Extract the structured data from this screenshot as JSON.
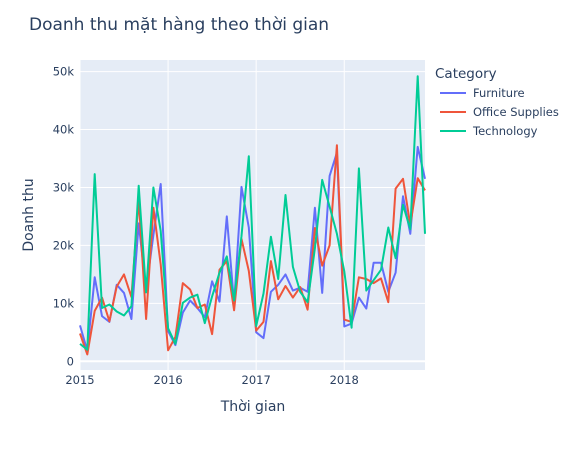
{
  "chart_data": {
    "type": "line",
    "title": "Doanh thu mặt hàng theo thời gian",
    "xlabel": "Thời gian",
    "ylabel": "Doanh thu",
    "x_start": "2015-01",
    "x_end": "2018-12",
    "x_ticks": [
      "2015",
      "2016",
      "2017",
      "2018"
    ],
    "y_ticks": [
      "0",
      "10k",
      "20k",
      "30k",
      "40k",
      "50k"
    ],
    "y_tick_values": [
      0,
      10000,
      20000,
      30000,
      40000,
      50000
    ],
    "ylim": [
      -1500,
      52000
    ],
    "grid": true,
    "legend_title": "Category",
    "legend_position": "right",
    "series": [
      {
        "name": "Furniture",
        "color": "#636efa",
        "x": [
          "2015-01",
          "2015-02",
          "2015-03",
          "2015-04",
          "2015-05",
          "2015-06",
          "2015-07",
          "2015-08",
          "2015-09",
          "2015-10",
          "2015-11",
          "2015-12",
          "2016-01",
          "2016-02",
          "2016-03",
          "2016-04",
          "2016-05",
          "2016-06",
          "2016-07",
          "2016-08",
          "2016-09",
          "2016-10",
          "2016-11",
          "2016-12",
          "2017-01",
          "2017-02",
          "2017-03",
          "2017-04",
          "2017-05",
          "2017-06",
          "2017-07",
          "2017-08",
          "2017-09",
          "2017-10",
          "2017-11",
          "2017-12",
          "2018-01",
          "2018-02",
          "2018-03",
          "2018-04",
          "2018-05",
          "2018-06",
          "2018-07",
          "2018-08",
          "2018-09",
          "2018-10",
          "2018-11",
          "2018-12"
        ],
        "values": [
          6200,
          1800,
          14500,
          7800,
          6800,
          13200,
          11800,
          7300,
          23800,
          12300,
          21800,
          30600,
          5200,
          2800,
          8400,
          10500,
          9200,
          7600,
          13800,
          10300,
          25000,
          10000,
          30100,
          23100,
          5000,
          4000,
          12000,
          13200,
          15000,
          12200,
          12700,
          12000,
          26500,
          11800,
          32000,
          36000,
          6000,
          6500,
          11000,
          9100,
          17000,
          17000,
          12000,
          15300,
          28500,
          22000,
          37000,
          31500
        ]
      },
      {
        "name": "Office Supplies",
        "color": "#ef553b",
        "x": [
          "2015-01",
          "2015-02",
          "2015-03",
          "2015-04",
          "2015-05",
          "2015-06",
          "2015-07",
          "2015-08",
          "2015-09",
          "2015-10",
          "2015-11",
          "2015-12",
          "2016-01",
          "2016-02",
          "2016-03",
          "2016-04",
          "2016-05",
          "2016-06",
          "2016-07",
          "2016-08",
          "2016-09",
          "2016-10",
          "2016-11",
          "2016-12",
          "2017-01",
          "2017-02",
          "2017-03",
          "2017-04",
          "2017-05",
          "2017-06",
          "2017-07",
          "2017-08",
          "2017-09",
          "2017-10",
          "2017-11",
          "2017-12",
          "2018-01",
          "2018-02",
          "2018-03",
          "2018-04",
          "2018-05",
          "2018-06",
          "2018-07",
          "2018-08",
          "2018-09",
          "2018-10",
          "2018-11",
          "2018-12"
        ],
        "values": [
          4800,
          1200,
          8700,
          11000,
          6900,
          12900,
          15000,
          11100,
          28000,
          7300,
          26500,
          16700,
          1900,
          4200,
          13500,
          12400,
          9200,
          9800,
          4700,
          15800,
          17300,
          8800,
          21100,
          15600,
          5300,
          6800,
          17300,
          10700,
          13000,
          11000,
          12800,
          8900,
          23000,
          16500,
          20000,
          37300,
          7200,
          6800,
          14500,
          14200,
          13500,
          14300,
          10200,
          29800,
          31500,
          23500,
          31600,
          29500
        ]
      },
      {
        "name": "Technology",
        "color": "#00cc96",
        "x": [
          "2015-01",
          "2015-02",
          "2015-03",
          "2015-04",
          "2015-05",
          "2015-06",
          "2015-07",
          "2015-08",
          "2015-09",
          "2015-10",
          "2015-11",
          "2015-12",
          "2016-01",
          "2016-02",
          "2016-03",
          "2016-04",
          "2016-05",
          "2016-06",
          "2016-07",
          "2016-08",
          "2016-09",
          "2016-10",
          "2016-11",
          "2016-12",
          "2017-01",
          "2017-02",
          "2017-03",
          "2017-04",
          "2017-05",
          "2017-06",
          "2017-07",
          "2017-08",
          "2017-09",
          "2017-10",
          "2017-11",
          "2017-12",
          "2018-01",
          "2018-02",
          "2018-03",
          "2018-04",
          "2018-05",
          "2018-06",
          "2018-07",
          "2018-08",
          "2018-09",
          "2018-10",
          "2018-11",
          "2018-12"
        ],
        "values": [
          3000,
          2000,
          32300,
          9200,
          9800,
          8600,
          7900,
          9500,
          30300,
          11900,
          30000,
          22500,
          5700,
          3000,
          10100,
          11000,
          11500,
          6600,
          11200,
          15300,
          18100,
          10500,
          21600,
          35400,
          6100,
          11700,
          21500,
          14200,
          28700,
          16300,
          12000,
          10200,
          19500,
          31300,
          26700,
          22000,
          15500,
          5800,
          33300,
          12200,
          14000,
          15800,
          23100,
          17800,
          27000,
          22800,
          49200,
          22000
        ]
      }
    ]
  }
}
